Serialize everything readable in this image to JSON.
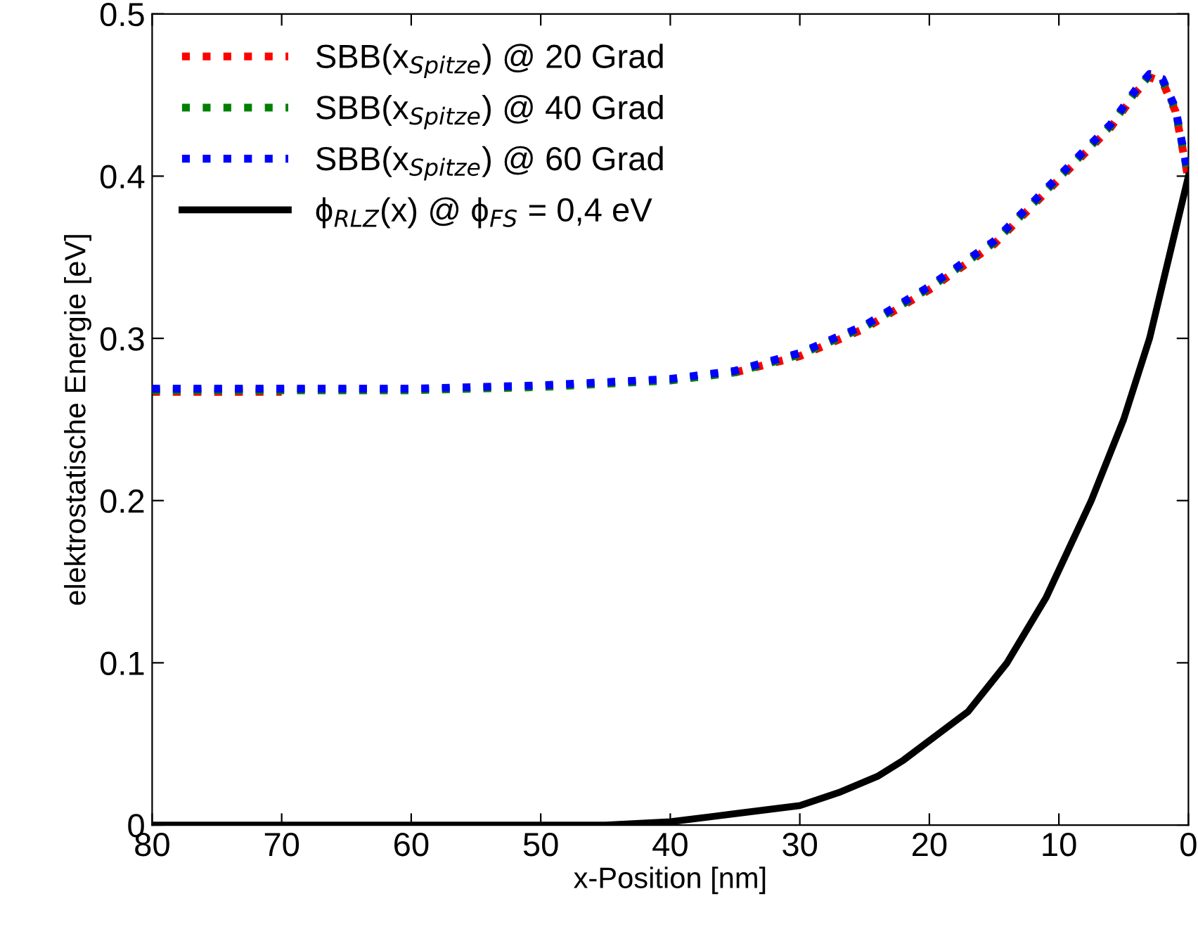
{
  "chart_data": {
    "type": "line",
    "xlabel": "x-Position [nm]",
    "ylabel": "elektrostatische Energie [eV]",
    "xlim": [
      80,
      0
    ],
    "xticks": [
      80,
      70,
      60,
      50,
      40,
      30,
      20,
      10,
      0
    ],
    "ylim": [
      0,
      0.5
    ],
    "yticks": [
      0,
      0.1,
      0.2,
      0.3,
      0.4,
      0.5
    ],
    "grid": false,
    "legend": "top left",
    "series": [
      {
        "name": "SBB(x$_{Spitze}$) @ 20 Grad",
        "color": "#ff0000",
        "line_style": "dotted",
        "x": [
          80,
          70,
          60,
          50,
          40,
          35,
          30,
          25,
          20,
          15,
          10,
          6,
          4,
          3,
          2,
          1,
          0
        ],
        "values": [
          0.267,
          0.267,
          null,
          null,
          null,
          0.279,
          0.289,
          0.306,
          0.33,
          0.358,
          0.398,
          0.43,
          0.452,
          0.461,
          0.458,
          0.44,
          0.398
        ]
      },
      {
        "name": "SBB(x$_{Spitze}$) @ 40 Grad",
        "color": "#008000",
        "line_style": "dotted",
        "x": [
          80,
          70,
          60,
          50,
          40,
          35,
          30,
          25,
          20,
          15,
          10,
          6,
          4,
          3,
          2,
          1,
          0
        ],
        "values": [
          0.268,
          0.268,
          0.268,
          0.27,
          0.274,
          0.279,
          0.29,
          0.307,
          0.331,
          0.359,
          0.399,
          0.431,
          0.453,
          0.462,
          0.459,
          0.441,
          0.399
        ]
      },
      {
        "name": "SBB(x$_{Spitze}$) @ 60 Grad",
        "color": "#0000ff",
        "line_style": "dotted",
        "x": [
          80,
          70,
          60,
          50,
          40,
          35,
          30,
          25,
          20,
          15,
          10,
          6,
          4,
          3,
          2,
          1,
          0
        ],
        "values": [
          0.269,
          0.269,
          0.269,
          0.271,
          0.275,
          0.28,
          0.291,
          0.308,
          0.332,
          0.36,
          0.4,
          0.432,
          0.454,
          0.463,
          0.46,
          0.442,
          0.4
        ]
      },
      {
        "name": "ϕ$_{RLZ}$(x) @ ϕ$_{FS}$ = 0,4 eV",
        "color": "#000000",
        "line_style": "solid",
        "x": [
          80,
          60,
          45,
          40,
          35,
          30,
          27,
          24,
          22,
          19.5,
          17,
          14,
          11,
          7.5,
          5,
          3,
          1.5,
          0
        ],
        "values": [
          0,
          0,
          0,
          0.002,
          0.007,
          0.012,
          0.02,
          0.03,
          0.04,
          0.055,
          0.07,
          0.1,
          0.14,
          0.2,
          0.25,
          0.3,
          0.35,
          0.4
        ]
      }
    ]
  }
}
